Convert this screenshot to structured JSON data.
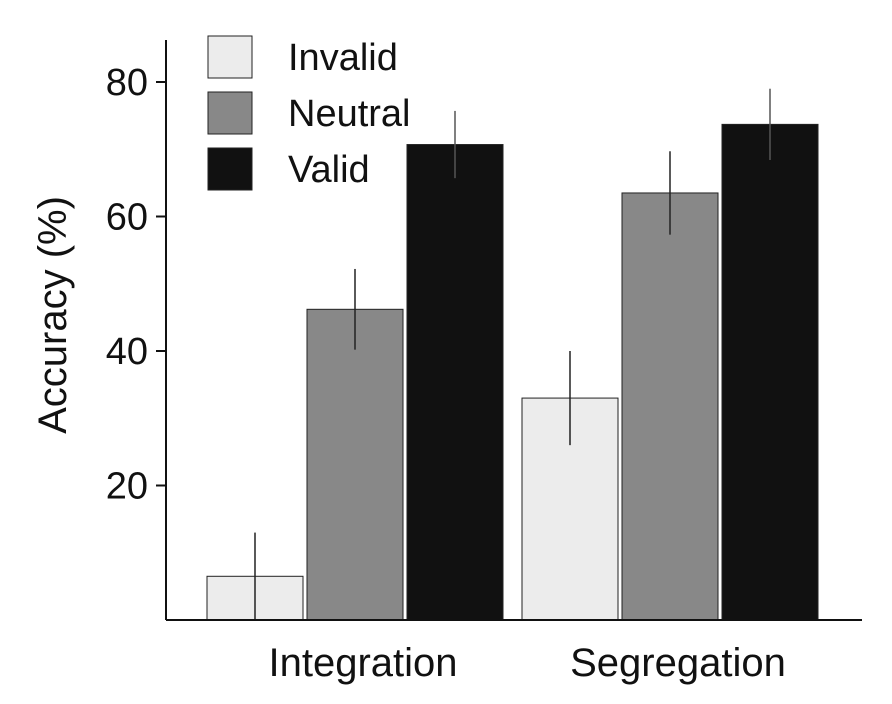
{
  "chart_data": {
    "type": "bar",
    "title": "",
    "xlabel": "",
    "ylabel": "Accuracy (%)",
    "ylim": [
      0,
      83
    ],
    "yticks": [
      "20",
      "40",
      "60",
      "80"
    ],
    "categories": [
      "Integration",
      "Segregation"
    ],
    "series": [
      {
        "name": "Invalid",
        "color": "#ececec",
        "values": [
          6.5,
          33.0
        ],
        "error": [
          6.5,
          7.0
        ]
      },
      {
        "name": "Neutral",
        "color": "#888888",
        "values": [
          46.2,
          63.5
        ],
        "error": [
          6.0,
          6.2
        ]
      },
      {
        "name": "Valid",
        "color": "#111111",
        "values": [
          70.7,
          73.7
        ],
        "error": [
          5.0,
          5.3
        ]
      }
    ],
    "legend_position": "top-left",
    "grid": false
  }
}
